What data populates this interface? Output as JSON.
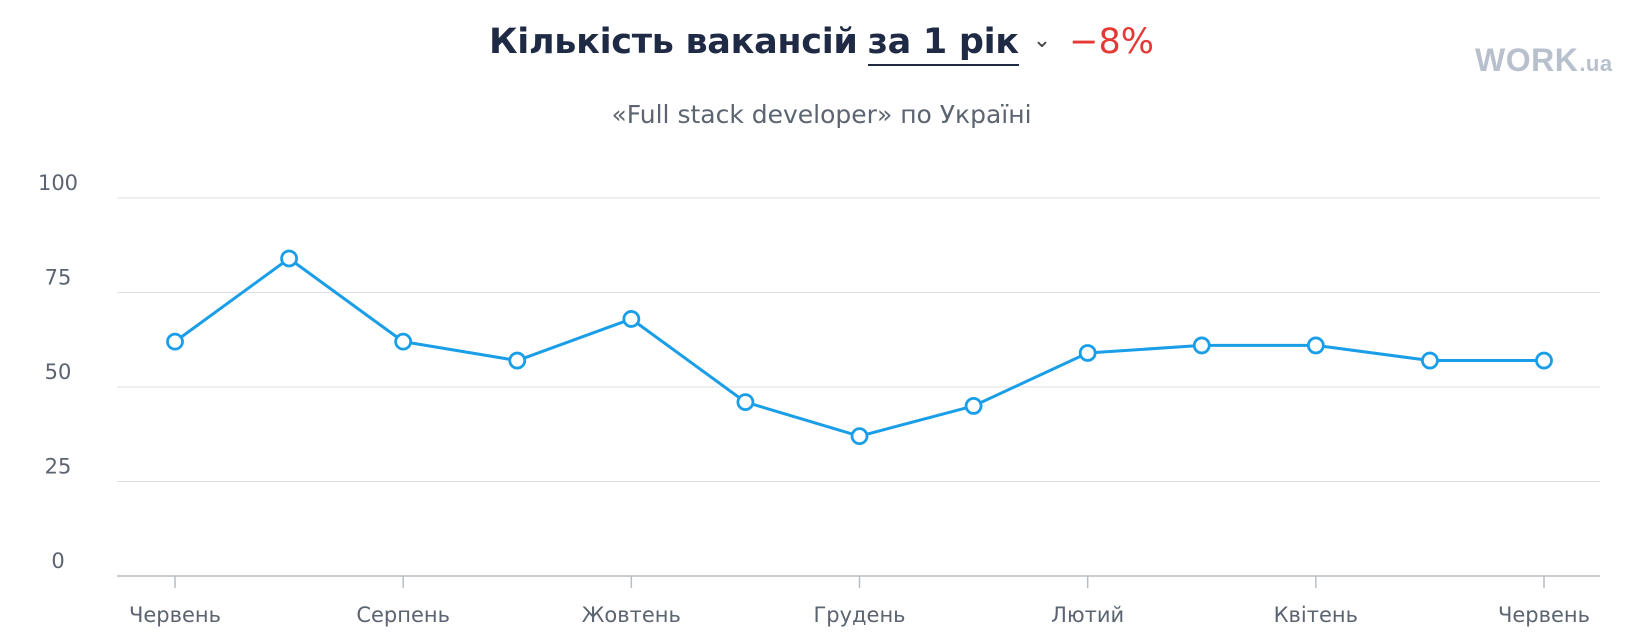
{
  "header": {
    "title": "Кількість вакансій",
    "period": "за 1 рік",
    "delta": "−8%",
    "subtitle": "«Full stack developer» по Україні"
  },
  "logo": {
    "main": "WORK",
    "suffix": ".ua"
  },
  "colors": {
    "line": "#1a9ee8",
    "grid": "#dcdfe3",
    "axis": "#b9bec4",
    "delta": "#e53935",
    "title": "#1f2a44"
  },
  "chart_data": {
    "type": "line",
    "ylim": [
      0,
      100
    ],
    "yticks": [
      0,
      25,
      50,
      75,
      100
    ],
    "x_tick_labels": [
      "Червень",
      "Серпень",
      "Жовтень",
      "Грудень",
      "Лютий",
      "Квітень",
      "Червень"
    ],
    "series": [
      {
        "x": [
          "2023-06",
          "2023-07",
          "2023-08",
          "2023-09",
          "2023-10",
          "2023-11",
          "2023-12",
          "2024-01",
          "2024-02",
          "2024-03",
          "2024-04",
          "2024-05",
          "2024-06"
        ],
        "values": [
          62,
          84,
          62,
          57,
          68,
          46,
          37,
          45,
          59,
          61,
          61,
          57,
          57
        ]
      }
    ],
    "grid": true,
    "legend": "none"
  }
}
